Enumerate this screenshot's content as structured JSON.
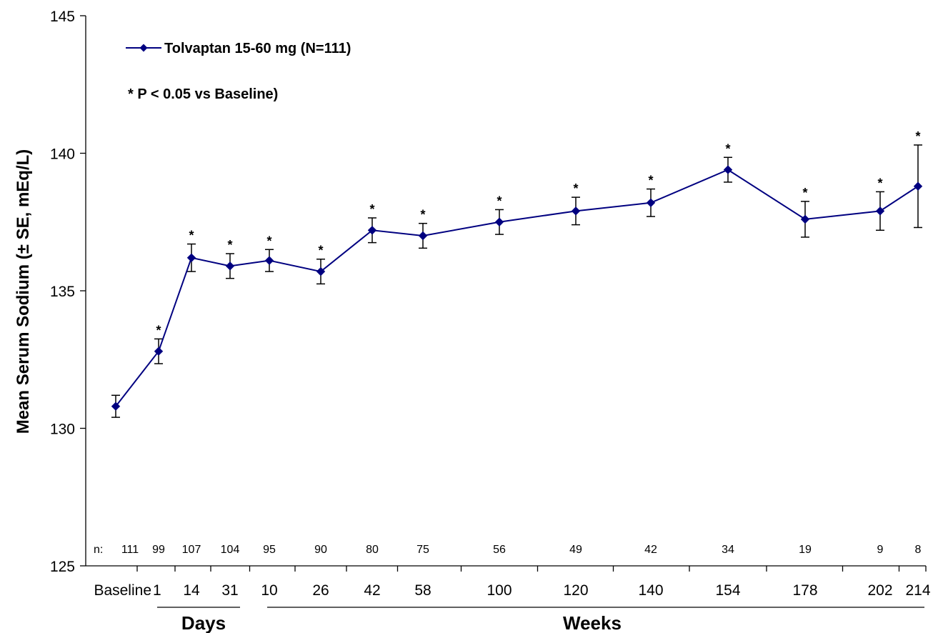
{
  "chart_data": {
    "type": "line",
    "ylabel": "Mean Serum Sodium (± SE,  mEq/L)",
    "ylim": [
      125,
      145
    ],
    "yticks": [
      125,
      130,
      135,
      140,
      145
    ],
    "x_tick_labels": [
      "Baseline",
      "1",
      "14",
      "31",
      "10",
      "26",
      "42",
      "58",
      "100",
      "120",
      "140",
      "154",
      "178",
      "202",
      "214"
    ],
    "n_prefix": "n:",
    "n_values": [
      "111",
      "99",
      "107",
      "104",
      "95",
      "90",
      "80",
      "75",
      "56",
      "49",
      "42",
      "34",
      "19",
      "9",
      "8"
    ],
    "groups": [
      {
        "label": "Days",
        "from": 1,
        "to": 31
      },
      {
        "label": "Weeks",
        "from": 10,
        "to": 214
      }
    ],
    "legend_position": "top-left",
    "footnote": "* P < 0.05 vs Baseline)",
    "significance_marker": "*",
    "series": [
      {
        "name": "Tolvaptan 15-60 mg (N=111)",
        "color": "#000080",
        "marker": "diamond",
        "values": [
          130.8,
          132.8,
          136.2,
          135.9,
          136.1,
          135.7,
          137.2,
          137.0,
          137.5,
          137.9,
          138.2,
          139.4,
          137.6,
          137.9,
          138.8
        ],
        "se": [
          0.4,
          0.45,
          0.5,
          0.45,
          0.4,
          0.45,
          0.45,
          0.45,
          0.45,
          0.5,
          0.5,
          0.45,
          0.65,
          0.7,
          1.5
        ],
        "significant": [
          false,
          true,
          true,
          true,
          true,
          true,
          true,
          true,
          true,
          true,
          true,
          true,
          true,
          true,
          true
        ]
      }
    ]
  }
}
